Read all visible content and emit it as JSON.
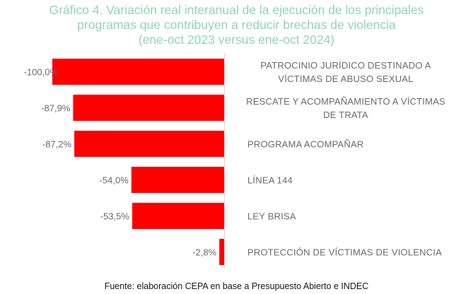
{
  "chart_data": {
    "type": "bar",
    "orientation": "horizontal",
    "title_lines": [
      "Gráfico 4. Variación real interanual de la ejecución de los principales",
      "programas que contribuyen a reducir brechas de violencia",
      "(ene-oct 2023 versus ene-oct 2024)"
    ],
    "categories": [
      [
        "PATROCINIO JURÍDICO DESTINADO A",
        "VÍCTIMAS DE ABUSO SEXUAL"
      ],
      [
        "RESCATE Y ACOMPAÑAMIENTO A VÍCTIMAS",
        "DE TRATA"
      ],
      [
        "PROGRAMA ACOMPAÑAR"
      ],
      [
        "LÍNEA 144"
      ],
      [
        "LEY BRISA"
      ],
      [
        "PROTECCIÓN DE VÍCTIMAS DE VIOLENCIA"
      ]
    ],
    "values": [
      -100.0,
      -87.9,
      -87.2,
      -54.0,
      -53.5,
      -2.8
    ],
    "data_labels": [
      "-100,0%",
      "-87,9%",
      "-87,2%",
      "-54,0%",
      "-53,5%",
      "-2,8%"
    ],
    "xlim": [
      -100,
      0
    ],
    "grid": false,
    "bar_color": "#ff0000",
    "title_color": "#8fd3b3"
  },
  "source": "Fuente: elaboración CEPA en base a Presupuesto Abierto e INDEC"
}
